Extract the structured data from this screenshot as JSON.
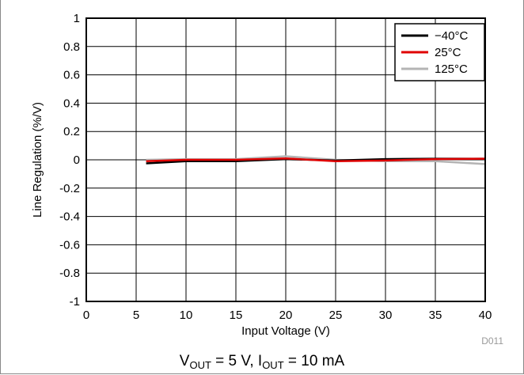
{
  "chart_data": {
    "type": "line",
    "xlabel": "Input Voltage (V)",
    "ylabel": "Line Regulation (%/V)",
    "xlim": [
      0,
      40
    ],
    "ylim": [
      -1,
      1
    ],
    "xticks": [
      0,
      5,
      10,
      15,
      20,
      25,
      30,
      35,
      40
    ],
    "yticks": [
      -1,
      -0.8,
      -0.6,
      -0.4,
      -0.2,
      0,
      0.2,
      0.4,
      0.6,
      0.8,
      1
    ],
    "ytick_labels": [
      "-1",
      "-0.8",
      "-0.6",
      "-0.4",
      "-0.2",
      "0",
      "0.2",
      "0.4",
      "0.6",
      "0.8",
      "1"
    ],
    "grid": true,
    "legend_position": "top-right",
    "series": [
      {
        "name": "−40°C",
        "color": "#000000",
        "x": [
          6,
          10,
          15,
          20,
          25,
          30,
          35,
          40
        ],
        "y": [
          -0.025,
          -0.01,
          -0.01,
          0.005,
          -0.005,
          0.005,
          0.008,
          0.008
        ]
      },
      {
        "name": "25°C",
        "color": "#e00000",
        "x": [
          6,
          10,
          15,
          20,
          25,
          30,
          35,
          40
        ],
        "y": [
          -0.01,
          0.0,
          0.0,
          0.01,
          -0.01,
          -0.005,
          0.005,
          0.008
        ]
      },
      {
        "name": "125°C",
        "color": "#b4b4b4",
        "x": [
          6,
          10,
          15,
          20,
          25,
          30,
          35,
          40
        ],
        "y": [
          0.0,
          0.005,
          0.005,
          0.025,
          0.0,
          -0.01,
          -0.01,
          -0.03
        ]
      }
    ]
  },
  "code_label": "D011",
  "caption": {
    "v": "V",
    "v_sub": "OUT",
    "v_rest": " = 5 V, ",
    "i": "I",
    "i_sub": "OUT",
    "i_rest": " = 10 mA"
  }
}
